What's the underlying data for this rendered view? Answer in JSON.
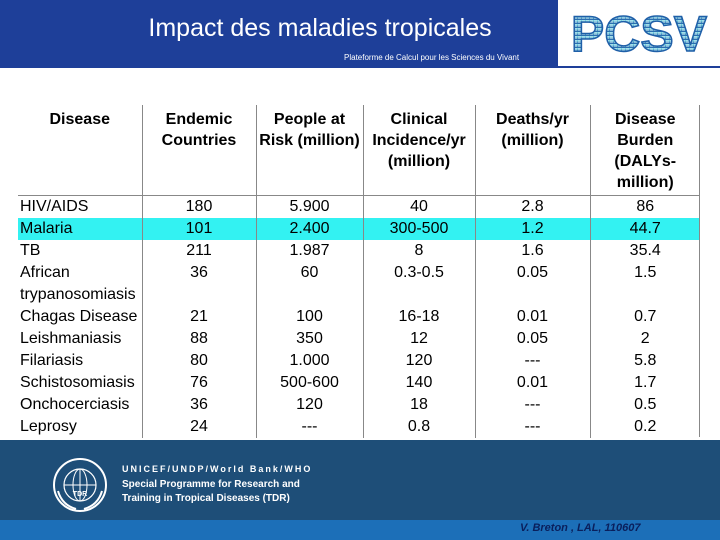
{
  "header": {
    "title": "Impact des maladies tropicales",
    "subtitle": "Plateforme de Calcul pour les Sciences du Vivant",
    "logo_text": "PCSV"
  },
  "colors": {
    "header_blue": "#1e3f99",
    "highlight_row": "#33f2f2",
    "footer_blue": "#1e4e78",
    "logo_gradient_light": "#7fe0e6",
    "logo_gradient_dark": "#1f5fa8"
  },
  "table": {
    "columns": [
      "Disease",
      "Endemic Countries",
      "People at Risk (million)",
      "Clinical Incidence/yr (million)",
      "Deaths/yr (million)",
      "Disease Burden (DALYs-million)"
    ],
    "highlighted_row_index": 1,
    "rows": [
      {
        "disease": "HIV/AIDS",
        "endemic": "180",
        "risk": "5.900",
        "incidence": "40",
        "deaths": "2.8",
        "burden": "86"
      },
      {
        "disease": "Malaria",
        "endemic": "101",
        "risk": "2.400",
        "incidence": "300-500",
        "deaths": "1.2",
        "burden": "44.7"
      },
      {
        "disease": "TB",
        "endemic": "211",
        "risk": "1.987",
        "incidence": "8",
        "deaths": "1.6",
        "burden": "35.4"
      },
      {
        "disease": "African trypanosomiasis",
        "endemic": "36",
        "risk": "60",
        "incidence": "0.3-0.5",
        "deaths": "0.05",
        "burden": "1.5"
      },
      {
        "disease": "Chagas Disease",
        "endemic": "21",
        "risk": "100",
        "incidence": "16-18",
        "deaths": "0.01",
        "burden": "0.7"
      },
      {
        "disease": "Leishmaniasis",
        "endemic": "88",
        "risk": "350",
        "incidence": "12",
        "deaths": "0.05",
        "burden": "2"
      },
      {
        "disease": "Filariasis",
        "endemic": "80",
        "risk": "1.000",
        "incidence": "120",
        "deaths": "---",
        "burden": "5.8"
      },
      {
        "disease": "Schistosomiasis",
        "endemic": "76",
        "risk": "500-600",
        "incidence": "140",
        "deaths": "0.01",
        "burden": "1.7"
      },
      {
        "disease": "Onchocerciasis",
        "endemic": "36",
        "risk": "120",
        "incidence": "18",
        "deaths": "---",
        "burden": "0.5"
      },
      {
        "disease": "Leprosy",
        "endemic": "24",
        "risk": "---",
        "incidence": "0.8",
        "deaths": "---",
        "burden": "0.2"
      }
    ]
  },
  "footer": {
    "org_line1": "UNICEF/UNDP/World Bank/WHO",
    "org_line2": "Special Programme for Research and",
    "org_line3": "Training in Tropical Diseases (TDR)",
    "emblem_label": "TDR",
    "credit": "V. Breton , LAL, 110607"
  }
}
